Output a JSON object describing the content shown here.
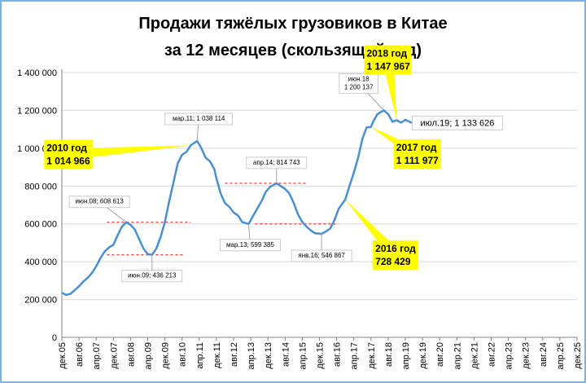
{
  "chart_data": {
    "type": "line",
    "title_line1": "Продажи тяжёлых грузовиков в Китае",
    "title_line2": "за 12 месяцев (скользящий год)",
    "xlabel": "",
    "ylabel": "",
    "ylim": [
      0,
      1400000
    ],
    "y_ticks": [
      {
        "value": 0,
        "label": "0"
      },
      {
        "value": 200000,
        "label": "200 000"
      },
      {
        "value": 400000,
        "label": "400 000"
      },
      {
        "value": 600000,
        "label": "600 000"
      },
      {
        "value": 800000,
        "label": "800 000"
      },
      {
        "value": 1000000,
        "label": "1 000 000"
      },
      {
        "value": 1200000,
        "label": "1 200 000"
      },
      {
        "value": 1400000,
        "label": "1 400 000"
      }
    ],
    "x_ticks": [
      "дек.05",
      "авг.06",
      "апр.07",
      "дек.07",
      "авг.08",
      "апр.09",
      "дек.09",
      "авг.10",
      "апр.11",
      "дек.11",
      "авг.12",
      "апр.13",
      "дек.13",
      "авг.14",
      "апр.15",
      "дек.15",
      "авг.16",
      "апр.17",
      "дек.17",
      "авг.18",
      "апр.19",
      "дек.19",
      "авг.20",
      "апр.21",
      "дек.21",
      "авг.22",
      "апр.23",
      "дек.23",
      "авг.24",
      "апр.25",
      "дек.25"
    ],
    "x_range": [
      "2005-12",
      "2025-12"
    ],
    "grid": {
      "x": false,
      "y": true
    },
    "colors": {
      "line": "#4a8fcf",
      "callout": "#ffff00",
      "reference_line": "#ff0000",
      "grid": "#d9d9d9",
      "frame": "#7fb3df"
    },
    "series": [
      {
        "name": "",
        "points": [
          [
            "2005-12",
            235000
          ],
          [
            "2006-02",
            225000
          ],
          [
            "2006-04",
            230000
          ],
          [
            "2006-06",
            250000
          ],
          [
            "2006-08",
            270000
          ],
          [
            "2006-10",
            295000
          ],
          [
            "2006-12",
            315000
          ],
          [
            "2007-02",
            340000
          ],
          [
            "2007-04",
            375000
          ],
          [
            "2007-06",
            420000
          ],
          [
            "2007-08",
            455000
          ],
          [
            "2007-10",
            475000
          ],
          [
            "2007-12",
            490000
          ],
          [
            "2008-02",
            540000
          ],
          [
            "2008-04",
            585000
          ],
          [
            "2008-06",
            608613
          ],
          [
            "2008-08",
            595000
          ],
          [
            "2008-10",
            570000
          ],
          [
            "2008-12",
            520000
          ],
          [
            "2009-02",
            470000
          ],
          [
            "2009-04",
            440000
          ],
          [
            "2009-06",
            436213
          ],
          [
            "2009-08",
            470000
          ],
          [
            "2009-10",
            530000
          ],
          [
            "2009-12",
            610000
          ],
          [
            "2010-02",
            720000
          ],
          [
            "2010-04",
            820000
          ],
          [
            "2010-06",
            920000
          ],
          [
            "2010-08",
            965000
          ],
          [
            "2010-10",
            980000
          ],
          [
            "2010-12",
            1014966
          ],
          [
            "2011-03",
            1038114
          ],
          [
            "2011-05",
            1000000
          ],
          [
            "2011-07",
            950000
          ],
          [
            "2011-09",
            930000
          ],
          [
            "2011-11",
            890000
          ],
          [
            "2011-12",
            840000
          ],
          [
            "2012-02",
            760000
          ],
          [
            "2012-04",
            710000
          ],
          [
            "2012-06",
            690000
          ],
          [
            "2012-08",
            660000
          ],
          [
            "2012-10",
            645000
          ],
          [
            "2012-12",
            610000
          ],
          [
            "2013-03",
            599385
          ],
          [
            "2013-05",
            640000
          ],
          [
            "2013-07",
            680000
          ],
          [
            "2013-09",
            720000
          ],
          [
            "2013-11",
            770000
          ],
          [
            "2014-01",
            795000
          ],
          [
            "2014-04",
            814743
          ],
          [
            "2014-06",
            800000
          ],
          [
            "2014-08",
            785000
          ],
          [
            "2014-10",
            760000
          ],
          [
            "2014-12",
            710000
          ],
          [
            "2015-02",
            650000
          ],
          [
            "2015-04",
            610000
          ],
          [
            "2015-06",
            585000
          ],
          [
            "2015-08",
            565000
          ],
          [
            "2015-10",
            550000
          ],
          [
            "2016-01",
            546867
          ],
          [
            "2016-03",
            560000
          ],
          [
            "2016-05",
            575000
          ],
          [
            "2016-07",
            620000
          ],
          [
            "2016-09",
            680000
          ],
          [
            "2016-12",
            728429
          ],
          [
            "2017-02",
            800000
          ],
          [
            "2017-04",
            870000
          ],
          [
            "2017-06",
            950000
          ],
          [
            "2017-08",
            1050000
          ],
          [
            "2017-10",
            1110000
          ],
          [
            "2017-12",
            1111977
          ],
          [
            "2018-01",
            1140000
          ],
          [
            "2018-03",
            1180000
          ],
          [
            "2018-06",
            1200137
          ],
          [
            "2018-08",
            1180000
          ],
          [
            "2018-10",
            1140000
          ],
          [
            "2018-12",
            1147967
          ],
          [
            "2019-02",
            1135000
          ],
          [
            "2019-04",
            1150000
          ],
          [
            "2019-07",
            1133626
          ]
        ]
      }
    ],
    "annotations": [
      {
        "text": "мар.11; 1 038 114",
        "date": "2011-03",
        "value": 1038114
      },
      {
        "text": "июн.08; 608 613",
        "date": "2008-06",
        "value": 608613
      },
      {
        "text": "июн.09; 436 213",
        "date": "2009-06",
        "value": 436213
      },
      {
        "text": "мар.13; 599 385",
        "date": "2013-03",
        "value": 599385
      },
      {
        "text": "апр.14; 814 743",
        "date": "2014-04",
        "value": 814743
      },
      {
        "text": "янв.16; 546 867",
        "date": "2016-01",
        "value": 546867
      },
      {
        "text": "июн.18\n1 200 137",
        "date": "2018-06",
        "value": 1200137
      },
      {
        "text": "июл.19; 1 133 626",
        "date": "2019-07",
        "value": 1133626
      }
    ],
    "callouts": [
      {
        "text": "2010 год\n1 014 966",
        "date": "2010-12",
        "value": 1014966
      },
      {
        "text": "2016 год\n728 429",
        "date": "2016-12",
        "value": 728429
      },
      {
        "text": "2017 год\n1 111 977",
        "date": "2017-12",
        "value": 1111977
      },
      {
        "text": "2018 год\n1 147 967",
        "date": "2018-12",
        "value": 1147967
      }
    ],
    "reference_lines": [
      {
        "value": 608613,
        "from": "2007-09",
        "to": "2010-12"
      },
      {
        "value": 436213,
        "from": "2007-09",
        "to": "2010-09"
      },
      {
        "value": 814743,
        "from": "2012-04",
        "to": "2015-06"
      },
      {
        "value": 599385,
        "from": "2013-06",
        "to": "2016-09"
      }
    ]
  }
}
